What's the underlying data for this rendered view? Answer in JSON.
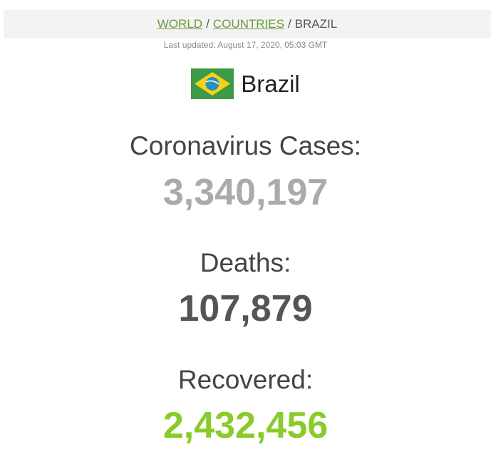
{
  "breadcrumb": {
    "world": "WORLD",
    "countries": "COUNTRIES",
    "current": "BRAZIL",
    "separator": "/"
  },
  "last_updated": "Last updated: August 17, 2020, 05:03 GMT",
  "country": {
    "name": "Brazil",
    "flag_icon": "brazil-flag-icon"
  },
  "stats": {
    "cases_label": "Coronavirus Cases:",
    "cases_value": "3,340,197",
    "deaths_label": "Deaths:",
    "deaths_value": "107,879",
    "recovered_label": "Recovered:",
    "recovered_value": "2,432,456"
  },
  "colors": {
    "cases": "#aaaaaa",
    "deaths": "#555555",
    "recovered": "#8aca2b",
    "link": "#6a9a3a"
  }
}
